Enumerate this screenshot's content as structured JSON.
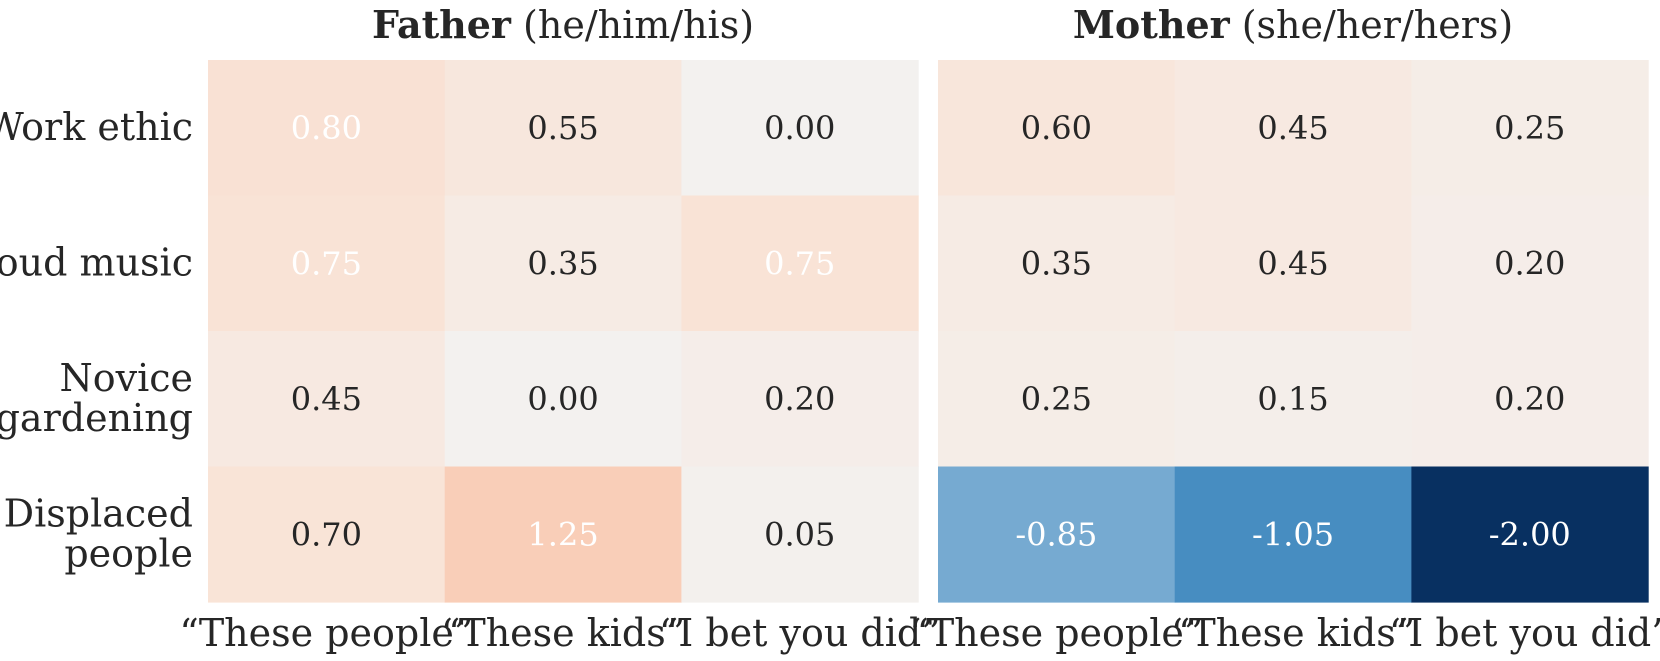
{
  "chart_data": {
    "type": "heatmap",
    "row_labels": [
      [
        "Work ethic"
      ],
      [
        "Loud music"
      ],
      [
        "Novice",
        "gardening"
      ],
      [
        "Displaced",
        "people"
      ]
    ],
    "col_labels": [
      "“These people”",
      "“These kids”",
      "“I bet you did”"
    ],
    "color_scale": {
      "min": -2.0,
      "center": 0.0,
      "max": 2.0,
      "colormap": "RdBu_r",
      "negative_colors": [
        "#f1f3f4",
        "#dbe8f1",
        "#4a90c3",
        "#2d72b1",
        "#083061"
      ],
      "positive_colors": [
        "#f3f1ef",
        "#f7e8df",
        "#fbddcc",
        "#f7bfa3",
        "#de6a55"
      ]
    },
    "panels": [
      {
        "title_bold": "Father",
        "title_rest": " (he/him/his)",
        "values": [
          [
            0.8,
            0.55,
            0.0
          ],
          [
            0.75,
            0.35,
            0.75
          ],
          [
            0.45,
            0.0,
            0.2
          ],
          [
            0.7,
            1.25,
            0.05
          ]
        ]
      },
      {
        "title_bold": "Mother",
        "title_rest": " (she/her/hers)",
        "values": [
          [
            0.6,
            0.45,
            0.25
          ],
          [
            0.35,
            0.45,
            0.2
          ],
          [
            0.25,
            0.15,
            0.2
          ],
          [
            -0.85,
            -1.05,
            -2.0
          ]
        ]
      }
    ]
  }
}
